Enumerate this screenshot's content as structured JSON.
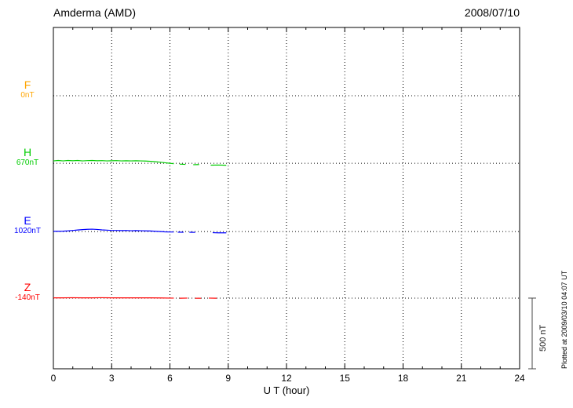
{
  "chart_data": {
    "type": "line",
    "title": "Amderma (AMD)",
    "date": "2008/07/10",
    "xlabel": "U T (hour)",
    "xlim": [
      0,
      24
    ],
    "x_ticks": [
      0,
      3,
      6,
      9,
      12,
      15,
      18,
      21,
      24
    ],
    "grid": "dotted",
    "legend_position": "left",
    "units": "nT offset from baseline",
    "scale_bar": {
      "label": "500 nT",
      "value_nT": 500
    },
    "plotted_at": "Plotted at 2009/03/10 04:07 UT",
    "series": [
      {
        "name": "F",
        "baseline_label": "0nT",
        "color": "#FFA500",
        "baseline_frac": 0.2,
        "segments": []
      },
      {
        "name": "H",
        "baseline_label": "670nT",
        "color": "#00CC00",
        "baseline_frac": 0.398,
        "segments": [
          [
            [
              0,
              17
            ],
            [
              0.25,
              20
            ],
            [
              0.5,
              17
            ],
            [
              0.75,
              20
            ],
            [
              1,
              18
            ],
            [
              1.25,
              20
            ],
            [
              1.5,
              17
            ],
            [
              1.75,
              19
            ],
            [
              2,
              20
            ],
            [
              2.25,
              18
            ],
            [
              2.5,
              19
            ],
            [
              2.75,
              17
            ],
            [
              3,
              18
            ],
            [
              3.25,
              19
            ],
            [
              3.5,
              17
            ],
            [
              3.75,
              18
            ],
            [
              4,
              17
            ],
            [
              4.25,
              18
            ],
            [
              4.5,
              17
            ],
            [
              4.75,
              16
            ],
            [
              5,
              14
            ],
            [
              5.25,
              11
            ],
            [
              5.5,
              8
            ],
            [
              5.75,
              4
            ],
            [
              6,
              0
            ],
            [
              6.2,
              -3
            ]
          ],
          [
            [
              6.5,
              -6
            ],
            [
              6.8,
              -8
            ]
          ],
          [
            [
              7.2,
              -10
            ],
            [
              7.5,
              -9
            ]
          ],
          [
            [
              8.1,
              -13
            ],
            [
              8.5,
              -12
            ],
            [
              8.9,
              -14
            ]
          ]
        ]
      },
      {
        "name": "E",
        "baseline_label": "1020nT",
        "color": "#0000FF",
        "baseline_frac": 0.598,
        "segments": [
          [
            [
              0,
              2
            ],
            [
              0.25,
              2
            ],
            [
              0.5,
              3
            ],
            [
              0.75,
              5
            ],
            [
              1,
              8
            ],
            [
              1.25,
              11
            ],
            [
              1.5,
              14
            ],
            [
              1.75,
              16
            ],
            [
              2,
              17
            ],
            [
              2.25,
              15
            ],
            [
              2.5,
              12
            ],
            [
              2.75,
              10
            ],
            [
              3,
              8
            ],
            [
              3.25,
              8
            ],
            [
              3.5,
              7
            ],
            [
              3.75,
              8
            ],
            [
              4,
              6
            ],
            [
              4.25,
              7
            ],
            [
              4.5,
              6
            ],
            [
              4.75,
              5
            ],
            [
              5,
              4
            ],
            [
              5.25,
              2
            ],
            [
              5.5,
              0
            ],
            [
              5.75,
              -2
            ],
            [
              6,
              -3
            ],
            [
              6.2,
              -3
            ]
          ],
          [
            [
              6.4,
              -4
            ],
            [
              6.7,
              -5
            ]
          ],
          [
            [
              7,
              -5
            ],
            [
              7.3,
              -6
            ]
          ],
          [
            [
              8.2,
              -8
            ],
            [
              8.5,
              -9
            ],
            [
              8.9,
              -9
            ]
          ]
        ]
      },
      {
        "name": "Z",
        "baseline_label": "-140nT",
        "color": "#FF0000",
        "baseline_frac": 0.793,
        "segments": [
          [
            [
              0,
              2
            ],
            [
              0.5,
              2
            ],
            [
              1,
              3
            ],
            [
              1.5,
              2
            ],
            [
              2,
              2
            ],
            [
              2.5,
              3
            ],
            [
              3,
              2
            ],
            [
              3.5,
              2
            ],
            [
              4,
              2
            ],
            [
              4.5,
              2
            ],
            [
              5,
              2
            ],
            [
              5.5,
              1
            ],
            [
              6,
              0
            ],
            [
              6.2,
              0
            ]
          ],
          [
            [
              6.5,
              -1
            ],
            [
              6.9,
              0
            ]
          ],
          [
            [
              7.3,
              -1
            ],
            [
              7.6,
              -1
            ]
          ],
          [
            [
              8,
              0
            ],
            [
              8.4,
              -1
            ]
          ]
        ]
      }
    ]
  }
}
